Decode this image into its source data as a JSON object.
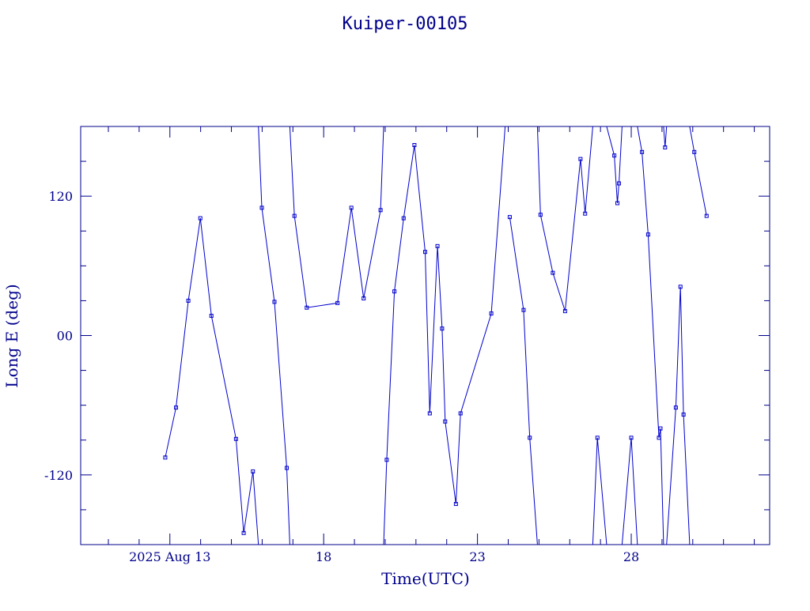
{
  "colors": {
    "ink": "#00008b",
    "series": "#0000cd",
    "background": "#ffffff"
  },
  "chart_data": {
    "type": "line",
    "title": "Kuiper-00105",
    "xlabel": "Time(UTC)",
    "ylabel": "Long E (deg)",
    "x_unit": "days (2025 Aug)",
    "xlim": [
      10.1,
      32.5
    ],
    "ylim": [
      -180,
      180
    ],
    "x_ticks": [
      {
        "x": 13,
        "label": "2025 Aug 13"
      },
      {
        "x": 18,
        "label": "18"
      },
      {
        "x": 23,
        "label": "23"
      },
      {
        "x": 28,
        "label": "28"
      }
    ],
    "y_ticks": [
      {
        "y": 120,
        "label": "120"
      },
      {
        "y": 0,
        "label": "00"
      },
      {
        "y": -120,
        "label": "-120"
      }
    ],
    "grid": false,
    "legend": "none",
    "series": [
      {
        "points": [
          [
            12.85,
            -105
          ],
          [
            13.2,
            -62
          ],
          [
            13.6,
            30
          ],
          [
            13.99,
            101
          ],
          [
            14.35,
            17
          ],
          [
            15.15,
            -89
          ],
          [
            15.4,
            -170
          ],
          [
            15.7,
            -117
          ],
          [
            15.88,
            -180
          ],
          [
            15.88,
            180
          ],
          [
            15.99,
            110
          ],
          [
            16.4,
            29
          ],
          [
            16.8,
            -114
          ],
          [
            16.9,
            -180
          ],
          [
            16.9,
            180
          ],
          [
            17.05,
            103
          ],
          [
            17.45,
            24
          ],
          [
            18.45,
            28
          ],
          [
            18.9,
            110
          ],
          [
            19.3,
            32
          ],
          [
            19.85,
            108
          ],
          [
            19.95,
            180
          ],
          [
            19.95,
            -180
          ],
          [
            20.05,
            -107
          ],
          [
            20.3,
            38
          ],
          [
            20.6,
            101
          ],
          [
            20.95,
            164
          ],
          [
            21.3,
            72
          ],
          [
            21.45,
            -67
          ],
          [
            21.7,
            77
          ],
          [
            21.85,
            6
          ],
          [
            21.95,
            -74
          ],
          [
            22.3,
            -145
          ],
          [
            22.45,
            -67
          ],
          [
            23.45,
            19
          ],
          [
            23.9,
            180
          ],
          [
            23.9,
            -180
          ],
          [
            24.05,
            102
          ],
          [
            24.5,
            22
          ],
          [
            24.7,
            -88
          ],
          [
            24.95,
            -180
          ],
          [
            24.95,
            180
          ],
          [
            25.05,
            104
          ],
          [
            25.45,
            54
          ],
          [
            25.85,
            21
          ],
          [
            26.35,
            152
          ],
          [
            26.5,
            105
          ],
          [
            26.75,
            180
          ],
          [
            26.75,
            -180
          ],
          [
            26.9,
            -88
          ],
          [
            27.2,
            -180
          ],
          [
            27.2,
            180
          ],
          [
            27.45,
            155
          ],
          [
            27.55,
            114
          ],
          [
            27.6,
            131
          ],
          [
            27.7,
            180
          ],
          [
            27.7,
            -180
          ],
          [
            28.0,
            -88
          ],
          [
            28.2,
            -180
          ],
          [
            28.2,
            180
          ],
          [
            28.35,
            158
          ],
          [
            28.55,
            87
          ],
          [
            28.9,
            -88
          ],
          [
            28.95,
            -80
          ],
          [
            29.05,
            -180
          ],
          [
            29.05,
            180
          ],
          [
            29.1,
            162
          ],
          [
            29.15,
            180
          ],
          [
            29.15,
            -180
          ],
          [
            29.45,
            -62
          ],
          [
            29.6,
            42
          ],
          [
            29.7,
            -68
          ],
          [
            29.9,
            -180
          ],
          [
            29.9,
            180
          ],
          [
            30.05,
            158
          ],
          [
            30.45,
            103
          ]
        ]
      }
    ]
  }
}
